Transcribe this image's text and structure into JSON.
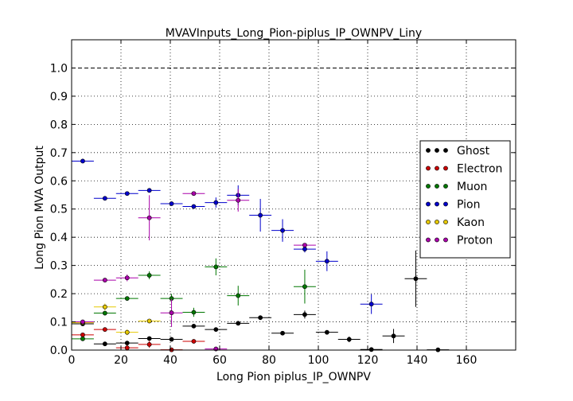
{
  "chart_data": {
    "type": "scatter",
    "title": "MVAVInputs_Long_Pion-piplus_IP_OWNPV_Liny",
    "xlabel": "Long Pion piplus_IP_OWNPV",
    "ylabel": "Long Pion MVA Output",
    "xlim": [
      0,
      180
    ],
    "ylim": [
      0,
      1.1
    ],
    "x_ticks": [
      0,
      20,
      40,
      60,
      80,
      100,
      120,
      140,
      160
    ],
    "x_tick_labels": [
      "0",
      "20",
      "40",
      "60",
      "80",
      "100",
      "120",
      "140",
      "160"
    ],
    "y_ticks": [
      0.0,
      0.1,
      0.2,
      0.3,
      0.4,
      0.5,
      0.6,
      0.7,
      0.8,
      0.9,
      1.0
    ],
    "y_tick_labels": [
      "0.0",
      "0.1",
      "0.2",
      "0.3",
      "0.4",
      "0.5",
      "0.6",
      "0.7",
      "0.8",
      "0.9",
      "1.0"
    ],
    "grid": true,
    "reference_line": 1.0,
    "legend_position": "right",
    "series": [
      {
        "name": "Ghost",
        "color": "#000000",
        "points": [
          {
            "x": 4.5,
            "y": 0.093,
            "xerr": 4.5,
            "yerr": 0.006
          },
          {
            "x": 13.5,
            "y": 0.022,
            "xerr": 4.5,
            "yerr": 0.004
          },
          {
            "x": 22.5,
            "y": 0.025,
            "xerr": 4.5,
            "yerr": 0.004
          },
          {
            "x": 31.5,
            "y": 0.041,
            "xerr": 4.5,
            "yerr": 0.004
          },
          {
            "x": 40.5,
            "y": 0.038,
            "xerr": 4.5,
            "yerr": 0.004
          },
          {
            "x": 49.5,
            "y": 0.085,
            "xerr": 4.5,
            "yerr": 0.005
          },
          {
            "x": 58.5,
            "y": 0.073,
            "xerr": 4.5,
            "yerr": 0.005
          },
          {
            "x": 67.5,
            "y": 0.095,
            "xerr": 4.5,
            "yerr": 0.006
          },
          {
            "x": 76.5,
            "y": 0.115,
            "xerr": 4.5,
            "yerr": 0.008
          },
          {
            "x": 85.5,
            "y": 0.06,
            "xerr": 4.5,
            "yerr": 0.007
          },
          {
            "x": 94.5,
            "y": 0.126,
            "xerr": 4.5,
            "yerr": 0.014
          },
          {
            "x": 103.5,
            "y": 0.063,
            "xerr": 4.5,
            "yerr": 0.006
          },
          {
            "x": 112.5,
            "y": 0.038,
            "xerr": 4.5,
            "yerr": 0.01
          },
          {
            "x": 121.5,
            "y": 0.002,
            "xerr": 4.5,
            "yerr": 0.003
          },
          {
            "x": 130.5,
            "y": 0.05,
            "xerr": 4.5,
            "yerr": 0.025
          },
          {
            "x": 139.5,
            "y": 0.253,
            "xerr": 4.5,
            "yerr": 0.1
          },
          {
            "x": 148.5,
            "y": 0.001,
            "xerr": 4.5,
            "yerr": 0.002
          }
        ]
      },
      {
        "name": "Electron",
        "color": "#cc0000",
        "points": [
          {
            "x": 4.5,
            "y": 0.054,
            "xerr": 4.5,
            "yerr": 0.006
          },
          {
            "x": 13.5,
            "y": 0.073,
            "xerr": 4.5,
            "yerr": 0.006
          },
          {
            "x": 22.5,
            "y": 0.008,
            "xerr": 4.5,
            "yerr": 0.01
          },
          {
            "x": 31.5,
            "y": 0.02,
            "xerr": 4.5,
            "yerr": 0.012
          },
          {
            "x": 40.5,
            "y": 0.001,
            "xerr": 4.5,
            "yerr": 0.004
          },
          {
            "x": 49.5,
            "y": 0.031,
            "xerr": 4.5,
            "yerr": 0.004
          }
        ]
      },
      {
        "name": "Muon",
        "color": "#007700",
        "points": [
          {
            "x": 4.5,
            "y": 0.04,
            "xerr": 4.5,
            "yerr": 0.005
          },
          {
            "x": 13.5,
            "y": 0.131,
            "xerr": 4.5,
            "yerr": 0.006
          },
          {
            "x": 22.5,
            "y": 0.183,
            "xerr": 4.5,
            "yerr": 0.006
          },
          {
            "x": 31.5,
            "y": 0.265,
            "xerr": 4.5,
            "yerr": 0.014
          },
          {
            "x": 40.5,
            "y": 0.183,
            "xerr": 4.5,
            "yerr": 0.016
          },
          {
            "x": 49.5,
            "y": 0.134,
            "xerr": 4.5,
            "yerr": 0.016
          },
          {
            "x": 58.5,
            "y": 0.295,
            "xerr": 4.5,
            "yerr": 0.03
          },
          {
            "x": 67.5,
            "y": 0.193,
            "xerr": 4.5,
            "yerr": 0.035
          },
          {
            "x": 94.5,
            "y": 0.225,
            "xerr": 4.5,
            "yerr": 0.06
          }
        ]
      },
      {
        "name": "Pion",
        "color": "#0000cc",
        "points": [
          {
            "x": 4.5,
            "y": 0.67,
            "xerr": 4.5,
            "yerr": 0.004
          },
          {
            "x": 13.5,
            "y": 0.538,
            "xerr": 4.5,
            "yerr": 0.004
          },
          {
            "x": 22.5,
            "y": 0.555,
            "xerr": 4.5,
            "yerr": 0.005
          },
          {
            "x": 31.5,
            "y": 0.566,
            "xerr": 4.5,
            "yerr": 0.005
          },
          {
            "x": 40.5,
            "y": 0.519,
            "xerr": 4.5,
            "yerr": 0.006
          },
          {
            "x": 49.5,
            "y": 0.509,
            "xerr": 4.5,
            "yerr": 0.007
          },
          {
            "x": 58.5,
            "y": 0.523,
            "xerr": 4.5,
            "yerr": 0.018
          },
          {
            "x": 67.5,
            "y": 0.549,
            "xerr": 4.5,
            "yerr": 0.035
          },
          {
            "x": 76.5,
            "y": 0.478,
            "xerr": 4.5,
            "yerr": 0.058
          },
          {
            "x": 85.5,
            "y": 0.424,
            "xerr": 4.5,
            "yerr": 0.04
          },
          {
            "x": 94.5,
            "y": 0.358,
            "xerr": 4.5,
            "yerr": 0.012
          },
          {
            "x": 103.5,
            "y": 0.315,
            "xerr": 4.5,
            "yerr": 0.035
          },
          {
            "x": 121.5,
            "y": 0.163,
            "xerr": 4.5,
            "yerr": 0.035
          }
        ]
      },
      {
        "name": "Kaon",
        "color": "#e6c800",
        "points": [
          {
            "x": 4.5,
            "y": 0.097,
            "xerr": 4.5,
            "yerr": 0.006
          },
          {
            "x": 13.5,
            "y": 0.153,
            "xerr": 4.5,
            "yerr": 0.012
          },
          {
            "x": 22.5,
            "y": 0.063,
            "xerr": 4.5,
            "yerr": 0.01
          },
          {
            "x": 31.5,
            "y": 0.103,
            "xerr": 4.5,
            "yerr": 0.006
          }
        ]
      },
      {
        "name": "Proton",
        "color": "#aa00aa",
        "points": [
          {
            "x": 4.5,
            "y": 0.1,
            "xerr": 4.5,
            "yerr": 0.005
          },
          {
            "x": 13.5,
            "y": 0.248,
            "xerr": 4.5,
            "yerr": 0.006
          },
          {
            "x": 22.5,
            "y": 0.256,
            "xerr": 4.5,
            "yerr": 0.012
          },
          {
            "x": 31.5,
            "y": 0.469,
            "xerr": 4.5,
            "yerr": 0.08
          },
          {
            "x": 40.5,
            "y": 0.132,
            "xerr": 4.5,
            "yerr": 0.05
          },
          {
            "x": 49.5,
            "y": 0.555,
            "xerr": 4.5,
            "yerr": 0.005
          },
          {
            "x": 58.5,
            "y": 0.004,
            "xerr": 4.5,
            "yerr": 0.004
          },
          {
            "x": 67.5,
            "y": 0.531,
            "xerr": 4.5,
            "yerr": 0.04
          },
          {
            "x": 94.5,
            "y": 0.372,
            "xerr": 4.5,
            "yerr": 0.006
          }
        ]
      }
    ]
  }
}
